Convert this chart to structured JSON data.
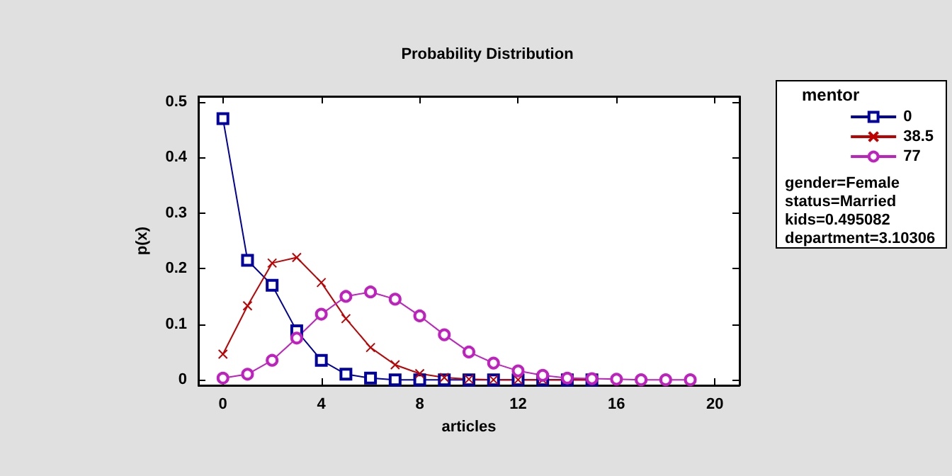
{
  "chart_data": {
    "type": "line",
    "title": "Probability Distribution",
    "xlabel": "articles",
    "ylabel": "p(x)",
    "legend_title": "mentor",
    "x": [
      0,
      1,
      2,
      3,
      4,
      5,
      6,
      7,
      8,
      9,
      10,
      11,
      12,
      13,
      14,
      15,
      16,
      17,
      18,
      19
    ],
    "series": [
      {
        "name": "0",
        "color": "#0000a0",
        "marker": "square",
        "x": [
          0,
          1,
          2,
          3,
          4,
          5,
          6,
          7,
          8,
          9,
          10,
          11,
          12,
          13,
          14,
          15
        ],
        "values": [
          0.47,
          0.215,
          0.17,
          0.088,
          0.035,
          0.01,
          0.003,
          0,
          0,
          0,
          0,
          0,
          0,
          0,
          0,
          0
        ]
      },
      {
        "name": "38.5",
        "color": "#c00000",
        "marker": "cross",
        "x": [
          0,
          1,
          2,
          3,
          4,
          5,
          6,
          7,
          8,
          9,
          10,
          11,
          12,
          13,
          14,
          15
        ],
        "values": [
          0.046,
          0.133,
          0.21,
          0.22,
          0.175,
          0.11,
          0.058,
          0.027,
          0.011,
          0.004,
          0.001,
          0,
          0,
          0,
          0,
          0
        ]
      },
      {
        "name": "77",
        "color": "#c020c0",
        "marker": "circle",
        "values": [
          0.003,
          0.01,
          0.035,
          0.075,
          0.118,
          0.15,
          0.158,
          0.145,
          0.115,
          0.081,
          0.05,
          0.03,
          0.016,
          0.008,
          0.003,
          0.002,
          0.001,
          0,
          0,
          0
        ]
      }
    ],
    "xlim": [
      -1,
      21
    ],
    "xticks": [
      0,
      4,
      8,
      12,
      16,
      20
    ],
    "ylim": [
      -0.01,
      0.51
    ],
    "yticks": [
      0,
      0.1,
      0.2,
      0.3,
      0.4,
      0.5
    ],
    "grid": false,
    "legend": "right",
    "line_style": "solid",
    "annotations": [
      "gender=Female",
      "status=Married",
      "kids=0.495082",
      "department=3.10306"
    ]
  }
}
